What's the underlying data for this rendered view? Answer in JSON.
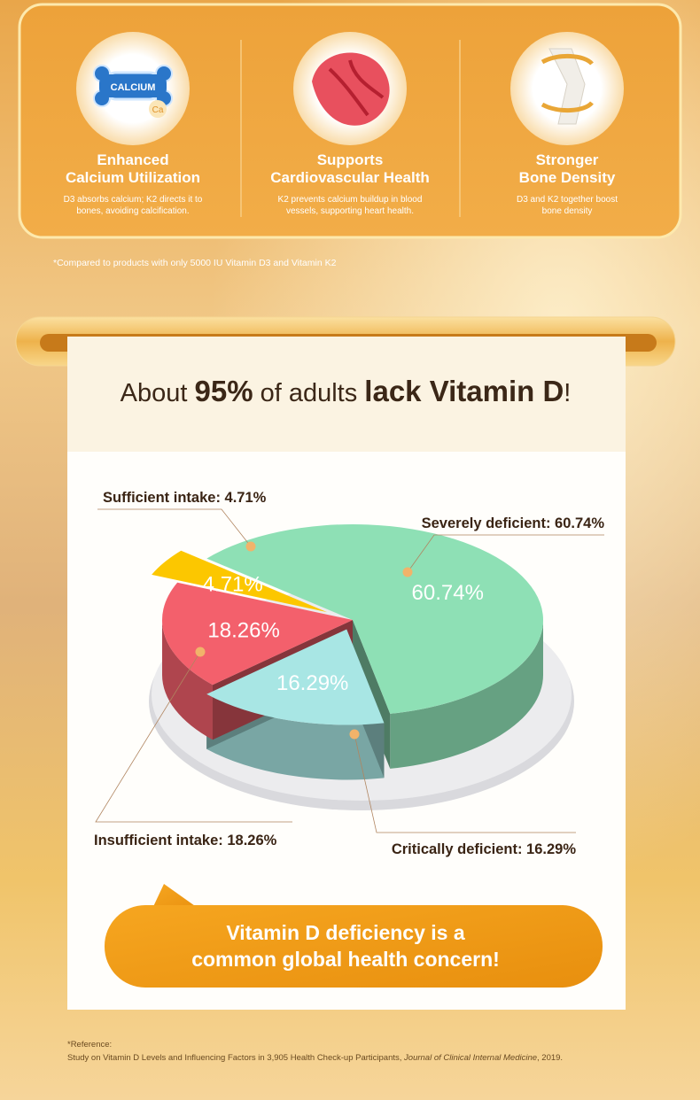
{
  "features": [
    {
      "icon_texts": [
        "CALCIUM",
        "Ca"
      ],
      "title": [
        "Enhanced",
        "Calcium Utilization"
      ],
      "description": [
        "D3 absorbs calcium; K2 directs it to",
        "bones, avoiding calcification."
      ]
    },
    {
      "title": [
        "Supports",
        "Cardiovascular Health"
      ],
      "description": [
        "K2 prevents calcium buildup in blood",
        "vessels, supporting heart health."
      ]
    },
    {
      "title": [
        "Stronger",
        "Bone Density"
      ],
      "description": [
        "D3 and K2 together boost",
        "bone density"
      ]
    }
  ],
  "footnote": "*Compared to products with only 5000 IU Vitamin D3 and Vitamin K2",
  "headline": [
    "About ",
    "95%",
    " of adults ",
    "lack Vitamin D",
    "!"
  ],
  "chart_data": {
    "type": "pie",
    "labels": [
      "Severely deficient: 60.74%",
      "Critically deficient: 16.29%",
      "Insufficient intake: 18.26%",
      "Sufficient intake: 4.71%"
    ],
    "values": [
      60.74,
      16.29,
      18.26,
      4.71
    ],
    "value_labels": [
      "60.74%",
      "16.29%",
      "18.26%",
      "4.71%"
    ],
    "colors": [
      "#8ee0b5",
      "#a8e6e4",
      "#f3606c",
      "#fcc700"
    ]
  },
  "bubble": [
    "Vitamin D deficiency is a",
    "common global health concern!"
  ],
  "reference": {
    "heading": "*Reference:",
    "text": [
      "Study on Vitamin D Levels and Influencing Factors in 3,905 Health Check-up Participants, ",
      "Journal of Clinical Internal Medicine",
      ", 2019."
    ]
  }
}
